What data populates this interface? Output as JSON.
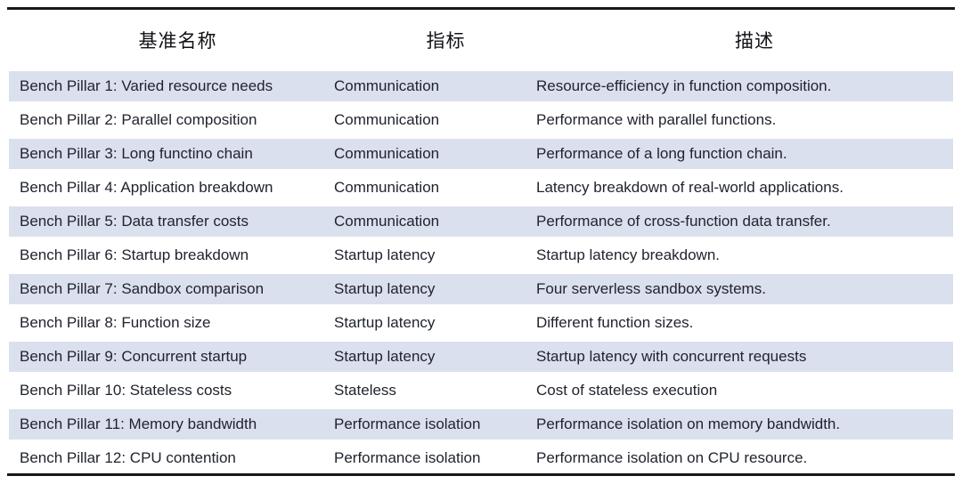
{
  "table": {
    "headers": {
      "name": "基准名称",
      "metric": "指标",
      "description": "描述"
    },
    "rows": [
      {
        "name": "Bench Pillar 1: Varied resource needs",
        "metric": "Communication",
        "description": "Resource-efficiency in function composition."
      },
      {
        "name": "Bench Pillar 2: Parallel composition",
        "metric": "Communication",
        "description": "Performance with parallel functions."
      },
      {
        "name": "Bench Pillar 3: Long functino chain",
        "metric": "Communication",
        "description": "Performance of a long function chain."
      },
      {
        "name": "Bench Pillar 4: Application breakdown",
        "metric": "Communication",
        "description": "Latency breakdown of real-world applications."
      },
      {
        "name": "Bench Pillar 5: Data transfer costs",
        "metric": "Communication",
        "description": "Performance of cross-function data transfer."
      },
      {
        "name": "Bench Pillar 6: Startup breakdown",
        "metric": "Startup latency",
        "description": "Startup latency breakdown."
      },
      {
        "name": "Bench Pillar 7: Sandbox comparison",
        "metric": "Startup latency",
        "description": "Four serverless sandbox systems."
      },
      {
        "name": "Bench Pillar 8: Function size",
        "metric": "Startup latency",
        "description": "Different function sizes."
      },
      {
        "name": "Bench Pillar 9: Concurrent startup",
        "metric": "Startup latency",
        "description": "Startup latency with concurrent requests"
      },
      {
        "name": "Bench Pillar 10: Stateless costs",
        "metric": "Stateless",
        "description": "Cost of stateless execution"
      },
      {
        "name": "Bench Pillar 11: Memory bandwidth",
        "metric": "Performance isolation",
        "description": "Performance isolation on memory bandwidth."
      },
      {
        "name": "Bench Pillar 12: CPU contention",
        "metric": "Performance isolation",
        "description": "Performance isolation on CPU resource."
      }
    ]
  },
  "colors": {
    "row_shade": "#dbe0ee",
    "rule": "#17181c",
    "body_text": "#20242e",
    "header_text": "#101115",
    "background": "#ffffff"
  }
}
